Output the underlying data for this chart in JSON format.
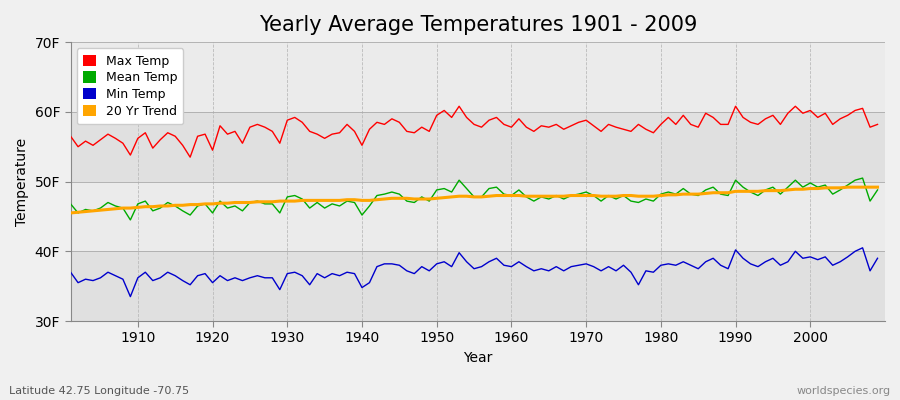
{
  "title": "Yearly Average Temperatures 1901 - 2009",
  "xlabel": "Year",
  "ylabel": "Temperature",
  "lat_lon_label": "Latitude 42.75 Longitude -70.75",
  "credit": "worldspecies.org",
  "years": [
    1901,
    1902,
    1903,
    1904,
    1905,
    1906,
    1907,
    1908,
    1909,
    1910,
    1911,
    1912,
    1913,
    1914,
    1915,
    1916,
    1917,
    1918,
    1919,
    1920,
    1921,
    1922,
    1923,
    1924,
    1925,
    1926,
    1927,
    1928,
    1929,
    1930,
    1931,
    1932,
    1933,
    1934,
    1935,
    1936,
    1937,
    1938,
    1939,
    1940,
    1941,
    1942,
    1943,
    1944,
    1945,
    1946,
    1947,
    1948,
    1949,
    1950,
    1951,
    1952,
    1953,
    1954,
    1955,
    1956,
    1957,
    1958,
    1959,
    1960,
    1961,
    1962,
    1963,
    1964,
    1965,
    1966,
    1967,
    1968,
    1969,
    1970,
    1971,
    1972,
    1973,
    1974,
    1975,
    1976,
    1977,
    1978,
    1979,
    1980,
    1981,
    1982,
    1983,
    1984,
    1985,
    1986,
    1987,
    1988,
    1989,
    1990,
    1991,
    1992,
    1993,
    1994,
    1995,
    1996,
    1997,
    1998,
    1999,
    2000,
    2001,
    2002,
    2003,
    2004,
    2005,
    2006,
    2007,
    2008,
    2009
  ],
  "max_temp": [
    56.5,
    55.0,
    55.8,
    55.2,
    56.0,
    56.8,
    56.2,
    55.5,
    53.8,
    56.2,
    57.0,
    54.8,
    56.0,
    57.0,
    56.5,
    55.2,
    53.5,
    56.5,
    56.8,
    54.5,
    58.0,
    56.8,
    57.2,
    55.5,
    57.8,
    58.2,
    57.8,
    57.2,
    55.5,
    58.8,
    59.2,
    58.5,
    57.2,
    56.8,
    56.2,
    56.8,
    57.0,
    58.2,
    57.2,
    55.2,
    57.5,
    58.5,
    58.2,
    59.0,
    58.5,
    57.2,
    57.0,
    57.8,
    57.2,
    59.5,
    60.2,
    59.2,
    60.8,
    59.2,
    58.2,
    57.8,
    58.8,
    59.2,
    58.2,
    57.8,
    59.0,
    57.8,
    57.2,
    58.0,
    57.8,
    58.2,
    57.5,
    58.0,
    58.5,
    58.8,
    58.0,
    57.2,
    58.2,
    57.8,
    57.5,
    57.2,
    58.2,
    57.5,
    57.0,
    58.2,
    59.2,
    58.2,
    59.5,
    58.2,
    57.8,
    59.8,
    59.2,
    58.2,
    58.2,
    60.8,
    59.2,
    58.5,
    58.2,
    59.0,
    59.5,
    58.2,
    59.8,
    60.8,
    59.8,
    60.2,
    59.2,
    59.8,
    58.2,
    59.0,
    59.5,
    60.2,
    60.5,
    57.8,
    58.2
  ],
  "mean_temp": [
    46.8,
    45.5,
    46.0,
    45.8,
    46.2,
    47.0,
    46.5,
    46.2,
    44.5,
    46.8,
    47.2,
    45.8,
    46.2,
    47.0,
    46.5,
    45.8,
    45.2,
    46.5,
    46.8,
    45.5,
    47.2,
    46.2,
    46.5,
    45.8,
    47.0,
    47.2,
    46.8,
    46.8,
    45.5,
    47.8,
    48.0,
    47.5,
    46.2,
    47.0,
    46.2,
    46.8,
    46.5,
    47.2,
    47.0,
    45.2,
    46.5,
    48.0,
    48.2,
    48.5,
    48.2,
    47.2,
    47.0,
    47.8,
    47.2,
    48.8,
    49.0,
    48.5,
    50.2,
    49.0,
    47.8,
    47.8,
    49.0,
    49.2,
    48.2,
    48.0,
    48.8,
    47.8,
    47.2,
    47.8,
    47.5,
    48.0,
    47.5,
    48.0,
    48.2,
    48.5,
    48.0,
    47.2,
    48.0,
    47.5,
    48.0,
    47.2,
    47.0,
    47.5,
    47.2,
    48.2,
    48.5,
    48.2,
    49.0,
    48.2,
    48.0,
    48.8,
    49.2,
    48.2,
    48.0,
    50.2,
    49.2,
    48.5,
    48.0,
    48.8,
    49.2,
    48.2,
    49.2,
    50.2,
    49.2,
    49.8,
    49.2,
    49.5,
    48.2,
    48.8,
    49.5,
    50.2,
    50.5,
    47.2,
    48.8
  ],
  "min_temp": [
    37.0,
    35.5,
    36.0,
    35.8,
    36.2,
    37.0,
    36.5,
    36.0,
    33.5,
    36.2,
    37.0,
    35.8,
    36.2,
    37.0,
    36.5,
    35.8,
    35.2,
    36.5,
    36.8,
    35.5,
    36.5,
    35.8,
    36.2,
    35.8,
    36.2,
    36.5,
    36.2,
    36.2,
    34.5,
    36.8,
    37.0,
    36.5,
    35.2,
    36.8,
    36.2,
    36.8,
    36.5,
    37.0,
    36.8,
    34.8,
    35.5,
    37.8,
    38.2,
    38.2,
    38.0,
    37.2,
    36.8,
    37.8,
    37.2,
    38.2,
    38.5,
    37.8,
    39.8,
    38.5,
    37.5,
    37.8,
    38.5,
    39.0,
    38.0,
    37.8,
    38.5,
    37.8,
    37.2,
    37.5,
    37.2,
    37.8,
    37.2,
    37.8,
    38.0,
    38.2,
    37.8,
    37.2,
    37.8,
    37.2,
    38.0,
    37.0,
    35.2,
    37.2,
    37.0,
    38.0,
    38.2,
    38.0,
    38.5,
    38.0,
    37.5,
    38.5,
    39.0,
    38.0,
    37.5,
    40.2,
    39.0,
    38.2,
    37.8,
    38.5,
    39.0,
    38.0,
    38.5,
    40.0,
    39.0,
    39.2,
    38.8,
    39.2,
    38.0,
    38.5,
    39.2,
    40.0,
    40.5,
    37.2,
    39.0
  ],
  "trend_years": [
    1901,
    1902,
    1903,
    1904,
    1905,
    1906,
    1907,
    1908,
    1909,
    1910,
    1911,
    1912,
    1913,
    1914,
    1915,
    1916,
    1917,
    1918,
    1919,
    1920,
    1921,
    1922,
    1923,
    1924,
    1925,
    1926,
    1927,
    1928,
    1929,
    1930,
    1931,
    1932,
    1933,
    1934,
    1935,
    1936,
    1937,
    1938,
    1939,
    1940,
    1941,
    1942,
    1943,
    1944,
    1945,
    1946,
    1947,
    1948,
    1949,
    1950,
    1951,
    1952,
    1953,
    1954,
    1955,
    1956,
    1957,
    1958,
    1959,
    1960,
    1961,
    1962,
    1963,
    1964,
    1965,
    1966,
    1967,
    1968,
    1969,
    1970,
    1971,
    1972,
    1973,
    1974,
    1975,
    1976,
    1977,
    1978,
    1979,
    1980,
    1981,
    1982,
    1983,
    1984,
    1985,
    1986,
    1987,
    1988,
    1989,
    1990,
    1991,
    1992,
    1993,
    1994,
    1995,
    1996,
    1997,
    1998,
    1999,
    2000,
    2001,
    2002,
    2003,
    2004,
    2005,
    2006,
    2007,
    2008,
    2009
  ],
  "trend_vals": [
    45.5,
    45.6,
    45.7,
    45.8,
    45.9,
    46.0,
    46.1,
    46.2,
    46.2,
    46.3,
    46.4,
    46.4,
    46.5,
    46.5,
    46.6,
    46.6,
    46.7,
    46.7,
    46.8,
    46.8,
    46.9,
    46.9,
    47.0,
    47.0,
    47.0,
    47.1,
    47.1,
    47.1,
    47.2,
    47.2,
    47.2,
    47.3,
    47.3,
    47.3,
    47.3,
    47.3,
    47.3,
    47.4,
    47.4,
    47.3,
    47.3,
    47.4,
    47.5,
    47.6,
    47.6,
    47.6,
    47.5,
    47.5,
    47.5,
    47.6,
    47.7,
    47.8,
    47.9,
    47.9,
    47.8,
    47.8,
    47.9,
    48.0,
    48.0,
    48.0,
    48.0,
    47.9,
    47.9,
    47.9,
    47.9,
    47.9,
    47.9,
    48.0,
    48.0,
    48.0,
    48.0,
    47.9,
    47.9,
    47.9,
    48.0,
    48.0,
    47.9,
    47.9,
    47.9,
    48.0,
    48.1,
    48.1,
    48.2,
    48.2,
    48.2,
    48.3,
    48.4,
    48.4,
    48.4,
    48.6,
    48.6,
    48.6,
    48.6,
    48.7,
    48.7,
    48.7,
    48.8,
    48.9,
    48.9,
    49.0,
    49.0,
    49.1,
    49.1,
    49.1,
    49.2,
    49.2,
    49.2,
    49.2,
    49.2
  ],
  "bg_color": "#f0f0f0",
  "plot_bg_color": "#e8e8e8",
  "max_color": "#ff0000",
  "mean_color": "#00aa00",
  "min_color": "#0000cc",
  "trend_color": "#ffa500",
  "grid_color": "#cccccc",
  "ylim": [
    30,
    70
  ],
  "yticks": [
    30,
    40,
    50,
    60,
    70
  ],
  "ytick_labels": [
    "30F",
    "40F",
    "50F",
    "60F",
    "70F"
  ],
  "xlim": [
    1901,
    2010
  ],
  "xticks": [
    1910,
    1920,
    1930,
    1940,
    1950,
    1960,
    1970,
    1980,
    1990,
    2000
  ],
  "title_fontsize": 15,
  "axis_fontsize": 10,
  "legend_fontsize": 9,
  "label_fontsize": 8
}
